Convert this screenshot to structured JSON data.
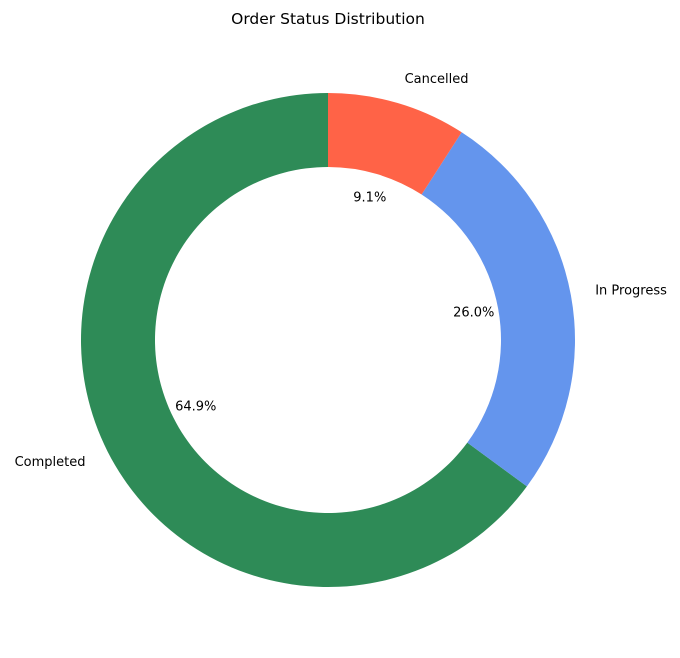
{
  "chart_data": {
    "type": "pie",
    "variant": "donut",
    "title": "Order Status Distribution",
    "categories": [
      "Completed",
      "In Progress",
      "Cancelled"
    ],
    "values": [
      64.9,
      26.0,
      9.1
    ],
    "value_labels": [
      "64.9%",
      "26.0%",
      "9.1%"
    ],
    "colors": [
      "#2e8b57",
      "#6495ed",
      "#ff6347"
    ],
    "start_angle_deg": 90,
    "direction": "counterclockwise",
    "legend": "none"
  }
}
